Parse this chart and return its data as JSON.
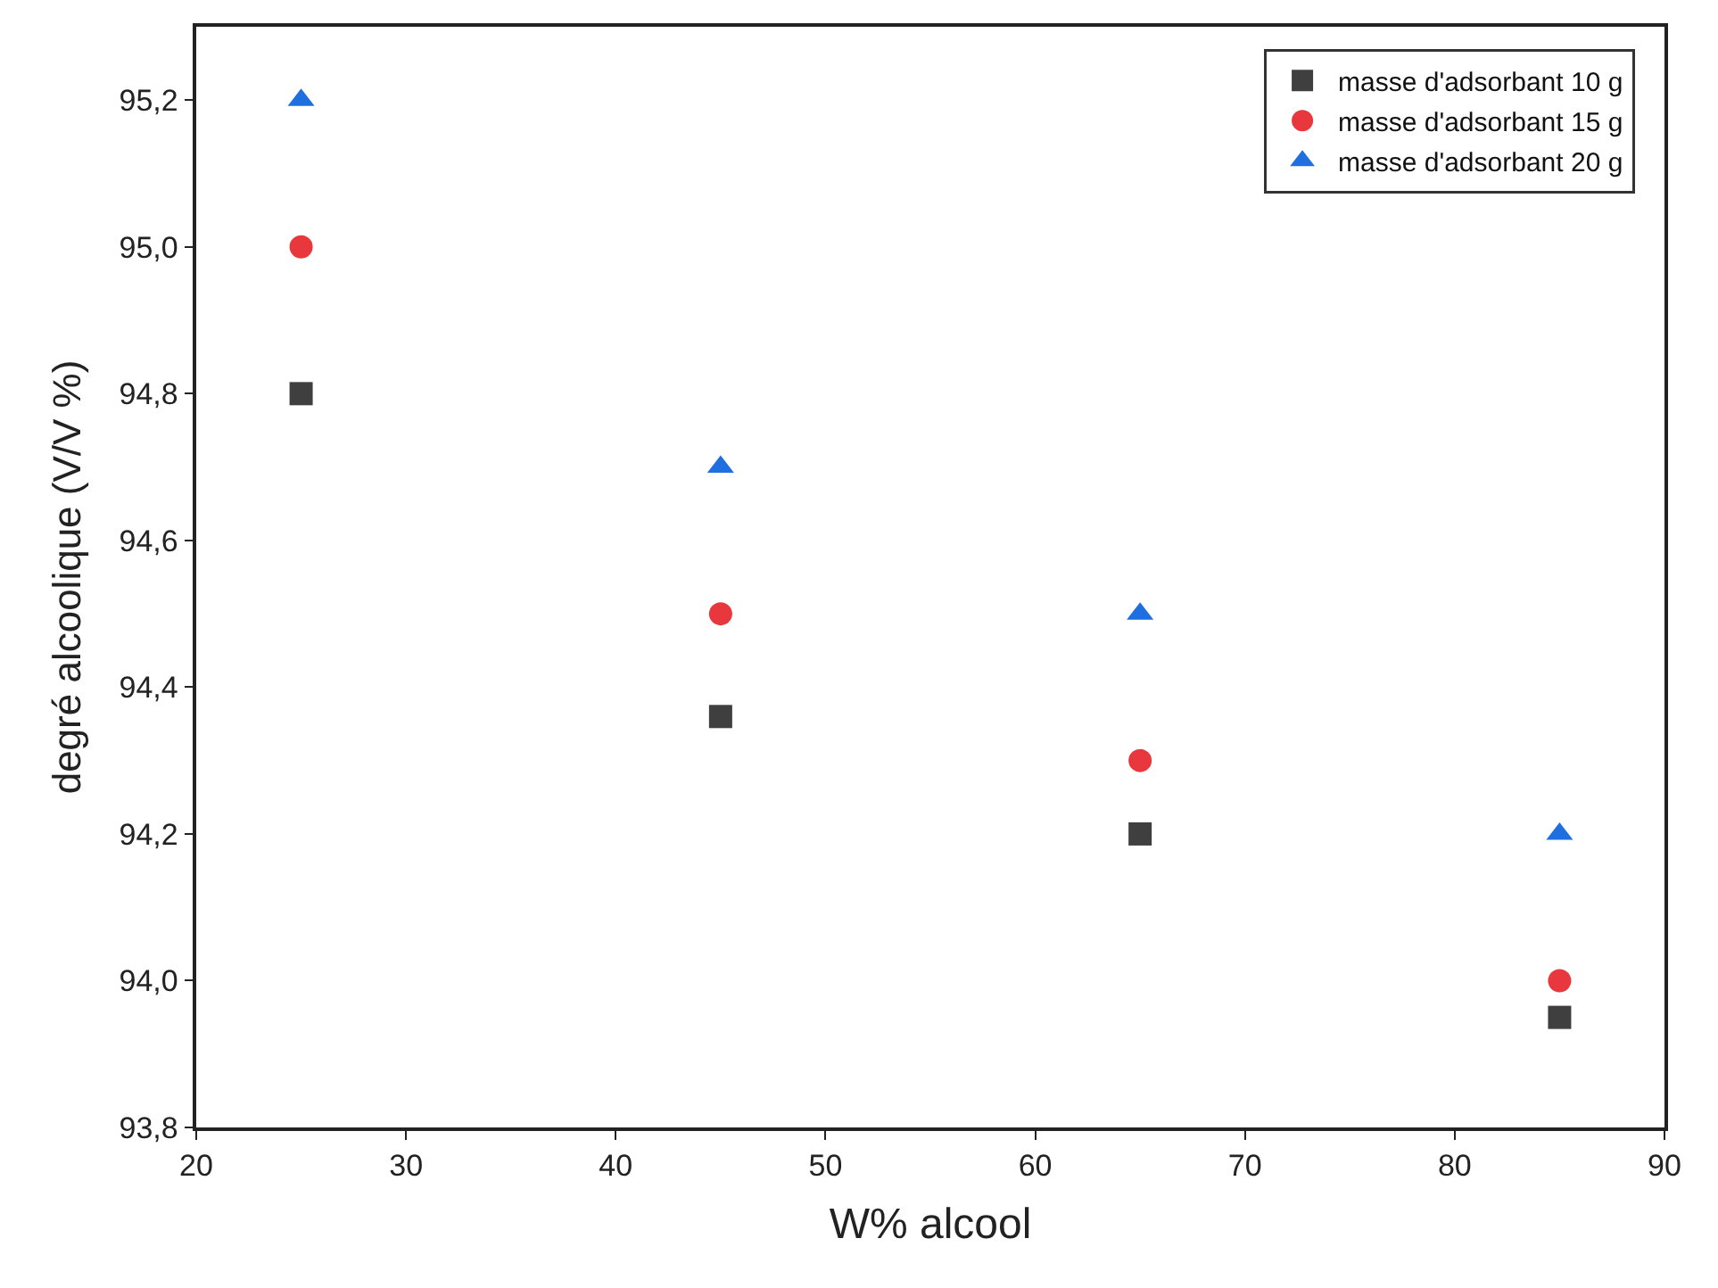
{
  "chart_data": {
    "type": "scatter",
    "xlabel": "W% alcool",
    "ylabel": "degré alcoolique (V/V %)",
    "x": [
      25,
      45,
      65,
      85
    ],
    "series": [
      {
        "name": "masse d'adsorbant 10 g",
        "color": "#3f3f3f",
        "marker": "square",
        "values": [
          94.8,
          94.36,
          94.2,
          93.95
        ]
      },
      {
        "name": "masse d'adsorbant 15 g",
        "color": "#e8383d",
        "marker": "circle",
        "values": [
          95.0,
          94.5,
          94.3,
          94.0
        ]
      },
      {
        "name": "masse d'adsorbant 20 g",
        "color": "#1f6fe0",
        "marker": "triangle",
        "values": [
          95.2,
          94.7,
          94.5,
          94.2
        ]
      }
    ],
    "xlim": [
      20,
      90
    ],
    "xticks": [
      20,
      30,
      40,
      50,
      60,
      70,
      80,
      90
    ],
    "ylim": [
      93.8,
      95.3
    ],
    "yticks": [
      {
        "value": 93.8,
        "label": "93,8"
      },
      {
        "value": 94.0,
        "label": "94,0"
      },
      {
        "value": 94.2,
        "label": "94,2"
      },
      {
        "value": 94.4,
        "label": "94,4"
      },
      {
        "value": 94.6,
        "label": "94,6"
      },
      {
        "value": 94.8,
        "label": "94,8"
      },
      {
        "value": 95.0,
        "label": "95,0"
      },
      {
        "value": 95.2,
        "label": "95,2"
      }
    ],
    "legend": "top right"
  }
}
